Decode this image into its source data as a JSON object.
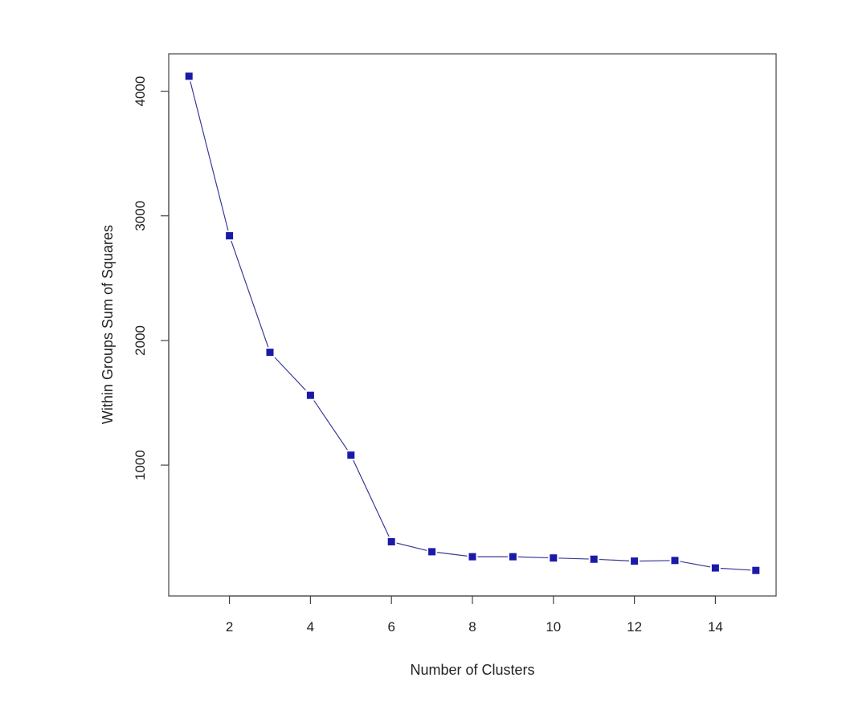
{
  "chart_data": {
    "type": "line",
    "title": "",
    "xlabel": "Number of Clusters",
    "ylabel": "Within Groups Sum of Squares",
    "x": [
      1,
      2,
      3,
      4,
      5,
      6,
      7,
      8,
      9,
      10,
      11,
      12,
      13,
      14,
      15
    ],
    "series": [
      {
        "values": [
          4120,
          2840,
          1905,
          1560,
          1080,
          385,
          305,
          265,
          265,
          255,
          245,
          230,
          235,
          175,
          155
        ]
      }
    ],
    "xlim": [
      0.5,
      15.5
    ],
    "ylim": [
      -50,
      4300
    ],
    "xticks": [
      2,
      4,
      6,
      8,
      10,
      12,
      14
    ],
    "yticks": [
      1000,
      2000,
      3000,
      4000
    ],
    "grid": false,
    "legend": "none",
    "line_color": "#3a3a9a",
    "marker_color": "#1a1aa8"
  }
}
